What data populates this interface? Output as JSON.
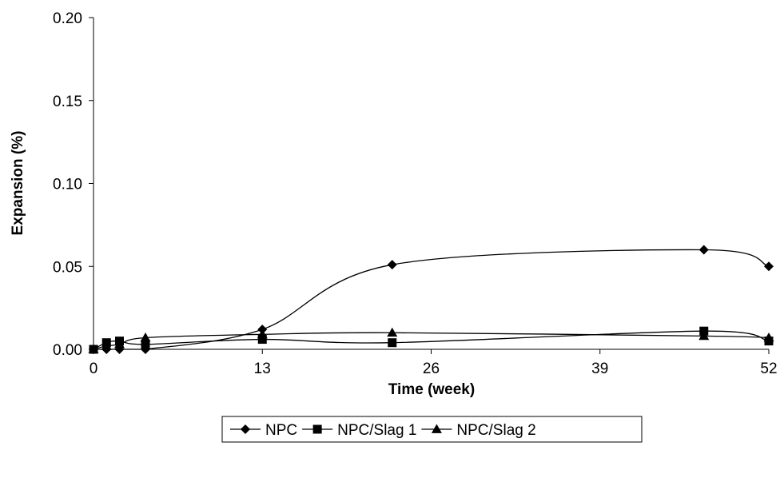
{
  "chart_data": {
    "type": "line",
    "title": "",
    "xlabel": "Time (week)",
    "ylabel": "Expansion (%)",
    "xlim": [
      0,
      52
    ],
    "ylim": [
      0,
      0.2
    ],
    "xticks": [
      0,
      13,
      26,
      39,
      52
    ],
    "xtick_labels": [
      "0",
      "13",
      "26",
      "39",
      "52"
    ],
    "yticks": [
      0,
      0.05,
      0.1,
      0.15,
      0.2
    ],
    "ytick_labels": [
      "0.00",
      "0.05",
      "0.10",
      "0.15",
      "0.20"
    ],
    "grid": false,
    "legend_position": "bottom",
    "series": [
      {
        "name": "NPC",
        "marker": "diamond",
        "x": [
          0,
          1,
          2,
          4,
          13,
          23,
          47,
          52
        ],
        "values": [
          0.0,
          0.0,
          0.0,
          0.0,
          0.012,
          0.051,
          0.06,
          0.05
        ]
      },
      {
        "name": "NPC/Slag 1",
        "marker": "square",
        "x": [
          0,
          1,
          2,
          4,
          13,
          23,
          47,
          52
        ],
        "values": [
          0.0,
          0.004,
          0.005,
          0.003,
          0.006,
          0.004,
          0.011,
          0.005
        ]
      },
      {
        "name": "NPC/Slag 2",
        "marker": "triangle",
        "x": [
          0,
          1,
          2,
          4,
          13,
          23,
          47,
          52
        ],
        "values": [
          0.0,
          0.002,
          0.003,
          0.007,
          0.009,
          0.01,
          0.008,
          0.007
        ]
      }
    ]
  }
}
